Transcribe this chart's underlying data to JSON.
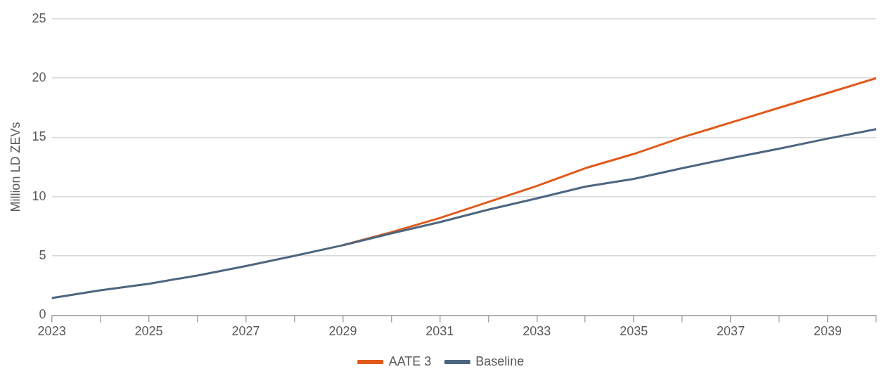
{
  "chart_data": {
    "type": "line",
    "ylabel": "Million LD ZEVs",
    "x": [
      2023,
      2024,
      2025,
      2026,
      2027,
      2028,
      2029,
      2030,
      2031,
      2032,
      2033,
      2034,
      2035,
      2036,
      2037,
      2038,
      2039,
      2040
    ],
    "series": [
      {
        "name": "AATE 3",
        "color": "#e05a1b",
        "values": [
          null,
          null,
          null,
          null,
          null,
          null,
          5.9,
          7.0,
          8.2,
          9.55,
          10.9,
          12.4,
          13.6,
          15.0,
          16.25,
          17.5,
          18.75,
          20.0
        ]
      },
      {
        "name": "Baseline",
        "color": "#4d6680",
        "values": [
          1.45,
          2.1,
          2.65,
          3.35,
          4.15,
          5.0,
          5.9,
          6.9,
          7.85,
          8.9,
          9.85,
          10.85,
          11.5,
          12.4,
          13.25,
          14.05,
          14.9,
          15.7
        ]
      }
    ],
    "xlim": [
      2023,
      2040
    ],
    "xticks": [
      2023,
      {
        "value": 2024,
        "label": null
      },
      2025,
      {
        "value": 2026,
        "label": null
      },
      2027,
      {
        "value": 2028,
        "label": null
      },
      2029,
      {
        "value": 2030,
        "label": null
      },
      2031,
      {
        "value": 2032,
        "label": null
      },
      2033,
      {
        "value": 2034,
        "label": null
      },
      2035,
      {
        "value": 2036,
        "label": null
      },
      2037,
      {
        "value": 2038,
        "label": null
      },
      2039,
      {
        "value": 2040,
        "label": null
      }
    ],
    "ylim": [
      0,
      25
    ],
    "yticks": [
      0,
      5,
      10,
      15,
      20,
      25
    ],
    "grid": "y",
    "legend": "bottom",
    "marker": "none",
    "line_style": "solid"
  }
}
